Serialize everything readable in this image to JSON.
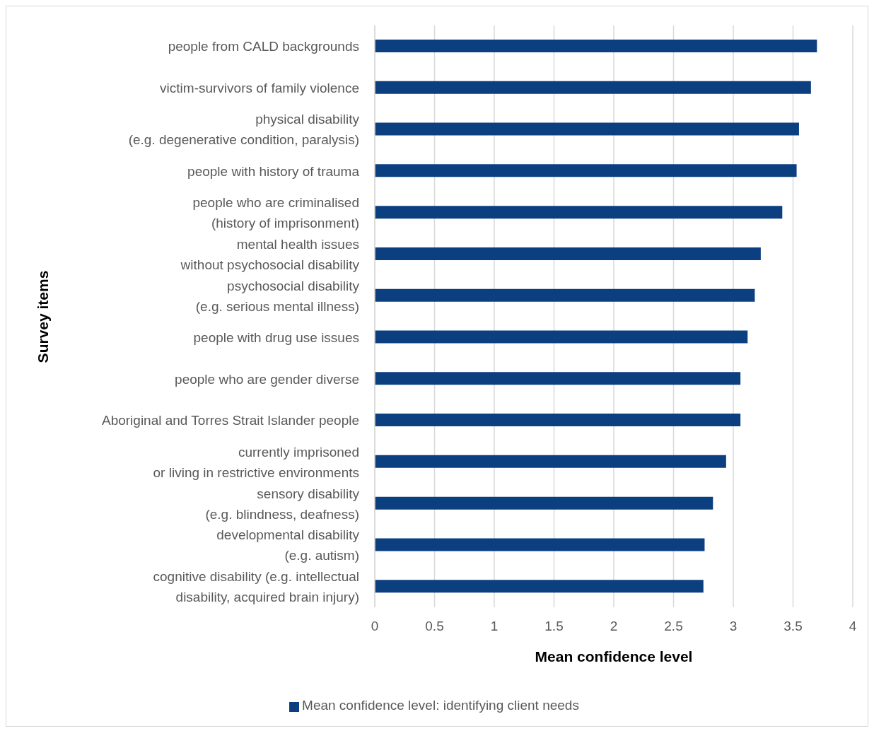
{
  "chart_data": {
    "type": "bar",
    "orientation": "horizontal",
    "xlabel": "Mean confidence level",
    "ylabel": "Survey items",
    "categories": [
      "people from CALD backgrounds",
      "victim-survivors of family violence",
      "physical disability\n(e.g. degenerative condition, paralysis)",
      "people with history of trauma",
      "people who are criminalised\n(history of imprisonment)",
      "mental health issues\nwithout psychosocial disability",
      "psychosocial disability\n(e.g. serious mental illness)",
      "people with drug use issues",
      "people who are gender diverse",
      "Aboriginal and Torres Strait Islander people",
      "currently imprisoned\nor living in restrictive environments",
      "sensory disability\n(e.g. blindness, deafness)",
      "developmental disability\n(e.g. autism)",
      "cognitive disability (e.g. intellectual\ndisability, acquired brain injury)"
    ],
    "series": [
      {
        "name": "Mean confidence level: identifying client needs",
        "color": "#0b3f80",
        "values": [
          3.7,
          3.65,
          3.55,
          3.53,
          3.41,
          3.23,
          3.18,
          3.12,
          3.06,
          3.06,
          2.94,
          2.83,
          2.76,
          2.75
        ]
      }
    ],
    "xlim": [
      0,
      4
    ],
    "xticks": [
      0,
      0.5,
      1,
      1.5,
      2,
      2.5,
      3,
      3.5,
      4
    ],
    "grid": "x",
    "legend": "bottom"
  }
}
